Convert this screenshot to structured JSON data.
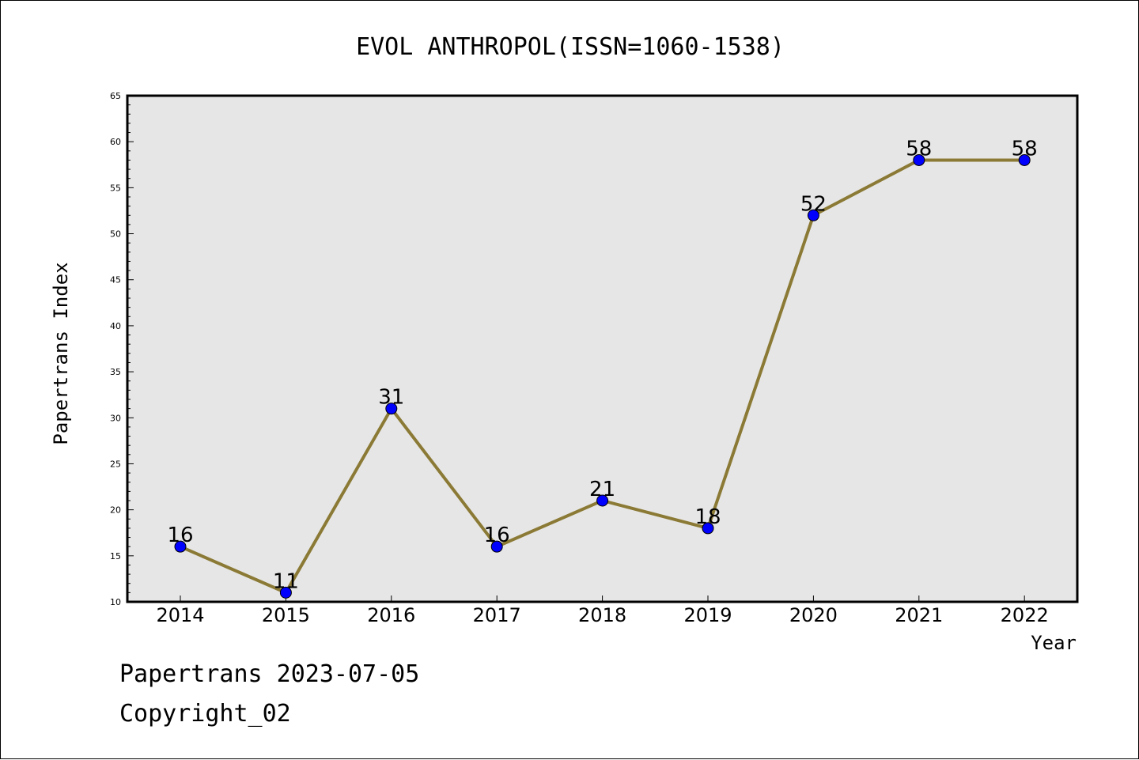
{
  "footer": {
    "date_line": "Papertrans 2023-07-05",
    "copyright": "Copyright_02"
  },
  "colors": {
    "plot_background": "#e6e6e6",
    "line": "#8b7a35",
    "marker": "#0000ff"
  },
  "chart_data": {
    "type": "line",
    "title": "EVOL ANTHROPOL(ISSN=1060-1538)",
    "xlabel": "Year",
    "ylabel": "Papertrans Index",
    "categories": [
      "2014",
      "2015",
      "2016",
      "2017",
      "2018",
      "2019",
      "2020",
      "2021",
      "2022"
    ],
    "series": [
      {
        "values": [
          16,
          11,
          31,
          16,
          21,
          18,
          52,
          58,
          58
        ]
      }
    ],
    "ylim": [
      10,
      65
    ],
    "yticks": [
      "10",
      "15",
      "20",
      "25",
      "30",
      "35",
      "40",
      "45",
      "50",
      "55",
      "60",
      "65"
    ],
    "data_labels": [
      "16",
      "11",
      "31",
      "16",
      "21",
      "18",
      "52",
      "58",
      "58"
    ],
    "grid": false,
    "legend": "none"
  }
}
